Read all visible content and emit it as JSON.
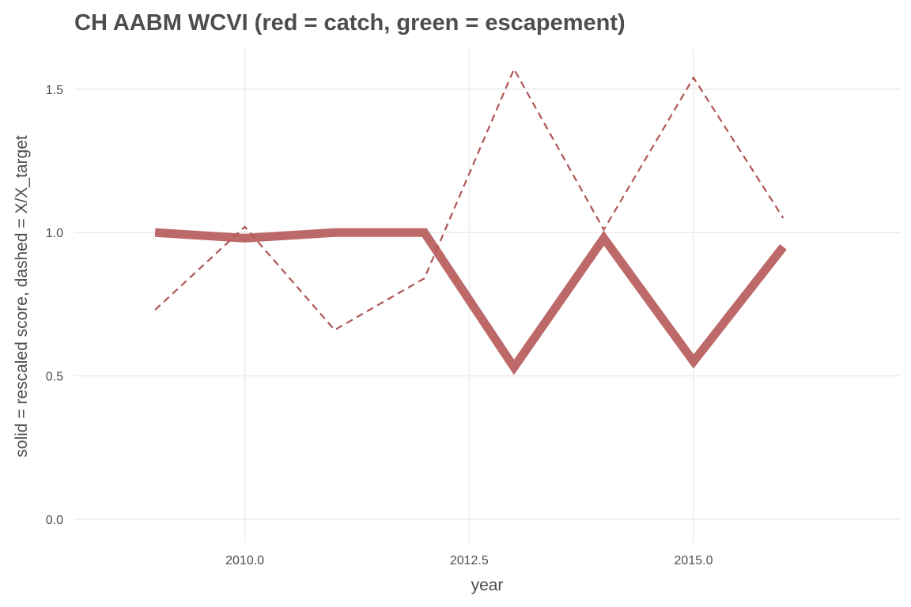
{
  "chart_data": {
    "type": "line",
    "title": "CH AABM WCVI (red = catch, green = escapement)",
    "xlabel": "year",
    "ylabel": "solid = rescaled score, dashed = X/X_target",
    "xlim": [
      2008.1,
      2017.3
    ],
    "ylim": [
      -0.08,
      1.64
    ],
    "x_ticks": [
      2010.0,
      2012.5,
      2015.0
    ],
    "x_tick_labels": [
      "2010.0",
      "2012.5",
      "2015.0"
    ],
    "y_ticks": [
      0.0,
      0.5,
      1.0,
      1.5
    ],
    "y_tick_labels": [
      "0.0",
      "0.5",
      "1.0",
      "1.5"
    ],
    "grid": true,
    "legend": "none",
    "series": [
      {
        "style": "solid",
        "color": "#b85c5c",
        "x": [
          2009,
          2010,
          2011,
          2012,
          2013,
          2014,
          2015,
          2016
        ],
        "y": [
          1.0,
          0.98,
          1.0,
          1.0,
          0.53,
          0.98,
          0.55,
          0.95
        ]
      },
      {
        "style": "dashed",
        "color": "#b05555",
        "x": [
          2009,
          2010,
          2011,
          2012,
          2013,
          2014,
          2015,
          2016
        ],
        "y": [
          0.73,
          1.02,
          0.66,
          0.84,
          1.57,
          1.01,
          1.54,
          1.05
        ]
      }
    ]
  }
}
